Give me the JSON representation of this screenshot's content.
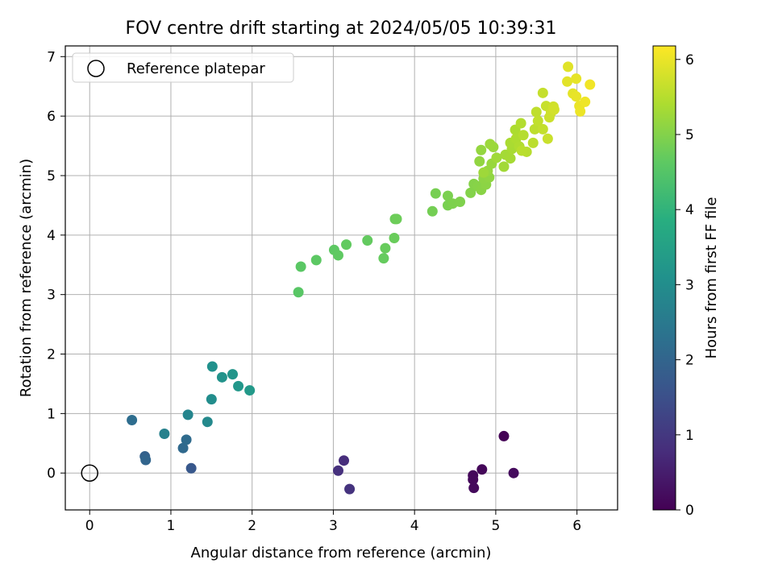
{
  "chart_data": {
    "type": "scatter",
    "title": "FOV centre drift starting at 2024/05/05 10:39:31",
    "xlabel": "Angular distance from reference (arcmin)",
    "ylabel": "Rotation from reference (arcmin)",
    "xlim": [
      -0.3,
      6.5
    ],
    "ylim": [
      -0.62,
      7.18
    ],
    "x_ticks": [
      "0",
      "1",
      "2",
      "3",
      "4",
      "5",
      "6"
    ],
    "y_ticks": [
      "0",
      "1",
      "2",
      "3",
      "4",
      "5",
      "6",
      "7"
    ],
    "grid": true,
    "legend": {
      "placement": "top-left",
      "label": "Reference platepar"
    },
    "reference_point": {
      "x": 0,
      "y": 0
    },
    "colorbar": {
      "label": "Hours from first FF file",
      "range": [
        0,
        6.18
      ],
      "ticks": [
        "0",
        "1",
        "2",
        "3",
        "4",
        "5",
        "6"
      ],
      "colormap": "viridis"
    },
    "points": [
      {
        "x": 5.1,
        "y": 0.62,
        "c": 0.02
      },
      {
        "x": 4.83,
        "y": 0.06,
        "c": 0.1
      },
      {
        "x": 4.72,
        "y": -0.04,
        "c": 0.12
      },
      {
        "x": 4.72,
        "y": -0.11,
        "c": 0.14
      },
      {
        "x": 4.73,
        "y": -0.25,
        "c": 0.16
      },
      {
        "x": 5.22,
        "y": 0.0,
        "c": 0.18
      },
      {
        "x": 3.13,
        "y": 0.21,
        "c": 0.8
      },
      {
        "x": 3.06,
        "y": 0.04,
        "c": 0.85
      },
      {
        "x": 3.2,
        "y": -0.27,
        "c": 0.9
      },
      {
        "x": 1.25,
        "y": 0.08,
        "c": 1.7
      },
      {
        "x": 0.68,
        "y": 0.28,
        "c": 1.9
      },
      {
        "x": 0.69,
        "y": 0.22,
        "c": 2.0
      },
      {
        "x": 1.15,
        "y": 0.42,
        "c": 2.1
      },
      {
        "x": 1.19,
        "y": 0.56,
        "c": 2.15
      },
      {
        "x": 0.52,
        "y": 0.89,
        "c": 2.2
      },
      {
        "x": 0.92,
        "y": 0.66,
        "c": 2.7
      },
      {
        "x": 1.21,
        "y": 0.98,
        "c": 2.8
      },
      {
        "x": 1.45,
        "y": 0.86,
        "c": 2.9
      },
      {
        "x": 1.5,
        "y": 1.24,
        "c": 3.0
      },
      {
        "x": 1.51,
        "y": 1.79,
        "c": 3.1
      },
      {
        "x": 1.63,
        "y": 1.61,
        "c": 3.15
      },
      {
        "x": 1.76,
        "y": 1.66,
        "c": 3.2
      },
      {
        "x": 1.83,
        "y": 1.46,
        "c": 3.25
      },
      {
        "x": 1.97,
        "y": 1.39,
        "c": 3.3
      },
      {
        "x": 2.57,
        "y": 3.04,
        "c": 4.55
      },
      {
        "x": 2.6,
        "y": 3.47,
        "c": 4.58
      },
      {
        "x": 2.79,
        "y": 3.58,
        "c": 4.6
      },
      {
        "x": 3.01,
        "y": 3.75,
        "c": 4.62
      },
      {
        "x": 3.06,
        "y": 3.66,
        "c": 4.64
      },
      {
        "x": 3.16,
        "y": 3.84,
        "c": 4.66
      },
      {
        "x": 3.42,
        "y": 3.91,
        "c": 4.68
      },
      {
        "x": 3.62,
        "y": 3.61,
        "c": 4.7
      },
      {
        "x": 3.64,
        "y": 3.78,
        "c": 4.72
      },
      {
        "x": 3.75,
        "y": 3.95,
        "c": 4.74
      },
      {
        "x": 3.76,
        "y": 4.27,
        "c": 4.76
      },
      {
        "x": 3.78,
        "y": 4.27,
        "c": 4.78
      },
      {
        "x": 4.22,
        "y": 4.4,
        "c": 4.85
      },
      {
        "x": 4.26,
        "y": 4.7,
        "c": 4.88
      },
      {
        "x": 4.41,
        "y": 4.5,
        "c": 4.9
      },
      {
        "x": 4.41,
        "y": 4.66,
        "c": 4.92
      },
      {
        "x": 4.47,
        "y": 4.53,
        "c": 4.94
      },
      {
        "x": 4.56,
        "y": 4.56,
        "c": 4.96
      },
      {
        "x": 4.69,
        "y": 4.71,
        "c": 5.0
      },
      {
        "x": 4.73,
        "y": 4.86,
        "c": 5.02
      },
      {
        "x": 4.78,
        "y": 4.82,
        "c": 5.04
      },
      {
        "x": 4.82,
        "y": 4.76,
        "c": 5.06
      },
      {
        "x": 4.88,
        "y": 4.85,
        "c": 5.08
      },
      {
        "x": 4.85,
        "y": 4.95,
        "c": 5.1
      },
      {
        "x": 4.92,
        "y": 4.97,
        "c": 5.12
      },
      {
        "x": 4.8,
        "y": 5.24,
        "c": 5.14
      },
      {
        "x": 4.82,
        "y": 5.43,
        "c": 5.16
      },
      {
        "x": 4.9,
        "y": 5.08,
        "c": 5.18
      },
      {
        "x": 4.95,
        "y": 5.2,
        "c": 5.2
      },
      {
        "x": 4.97,
        "y": 5.48,
        "c": 5.22
      },
      {
        "x": 4.93,
        "y": 5.53,
        "c": 5.24
      },
      {
        "x": 4.85,
        "y": 5.05,
        "c": 5.26
      },
      {
        "x": 5.01,
        "y": 5.3,
        "c": 5.28
      },
      {
        "x": 5.1,
        "y": 5.15,
        "c": 5.3
      },
      {
        "x": 5.12,
        "y": 5.35,
        "c": 5.32
      },
      {
        "x": 5.18,
        "y": 5.29,
        "c": 5.34
      },
      {
        "x": 5.2,
        "y": 5.45,
        "c": 5.36
      },
      {
        "x": 5.18,
        "y": 5.55,
        "c": 5.38
      },
      {
        "x": 5.24,
        "y": 5.77,
        "c": 5.4
      },
      {
        "x": 5.25,
        "y": 5.62,
        "c": 5.42
      },
      {
        "x": 5.29,
        "y": 5.49,
        "c": 5.44
      },
      {
        "x": 5.31,
        "y": 5.88,
        "c": 5.46
      },
      {
        "x": 5.34,
        "y": 5.68,
        "c": 5.48
      },
      {
        "x": 5.38,
        "y": 5.4,
        "c": 5.5
      },
      {
        "x": 5.32,
        "y": 5.42,
        "c": 5.52
      },
      {
        "x": 5.46,
        "y": 5.55,
        "c": 5.54
      },
      {
        "x": 5.48,
        "y": 5.78,
        "c": 5.56
      },
      {
        "x": 5.5,
        "y": 6.07,
        "c": 5.58
      },
      {
        "x": 5.52,
        "y": 5.92,
        "c": 5.6
      },
      {
        "x": 5.58,
        "y": 5.78,
        "c": 5.62
      },
      {
        "x": 5.58,
        "y": 6.39,
        "c": 5.64
      },
      {
        "x": 5.62,
        "y": 6.17,
        "c": 5.66
      },
      {
        "x": 5.64,
        "y": 5.62,
        "c": 5.68
      },
      {
        "x": 5.66,
        "y": 5.98,
        "c": 5.7
      },
      {
        "x": 5.68,
        "y": 6.06,
        "c": 5.72
      },
      {
        "x": 5.71,
        "y": 6.16,
        "c": 5.74
      },
      {
        "x": 5.72,
        "y": 6.11,
        "c": 5.76
      },
      {
        "x": 5.89,
        "y": 6.83,
        "c": 5.9
      },
      {
        "x": 5.88,
        "y": 6.58,
        "c": 5.92
      },
      {
        "x": 5.95,
        "y": 6.38,
        "c": 5.94
      },
      {
        "x": 5.99,
        "y": 6.63,
        "c": 5.96
      },
      {
        "x": 5.99,
        "y": 6.33,
        "c": 5.98
      },
      {
        "x": 6.03,
        "y": 6.17,
        "c": 6.0
      },
      {
        "x": 6.04,
        "y": 6.08,
        "c": 6.02
      },
      {
        "x": 6.1,
        "y": 6.24,
        "c": 6.04
      },
      {
        "x": 6.16,
        "y": 6.53,
        "c": 6.06
      }
    ]
  }
}
